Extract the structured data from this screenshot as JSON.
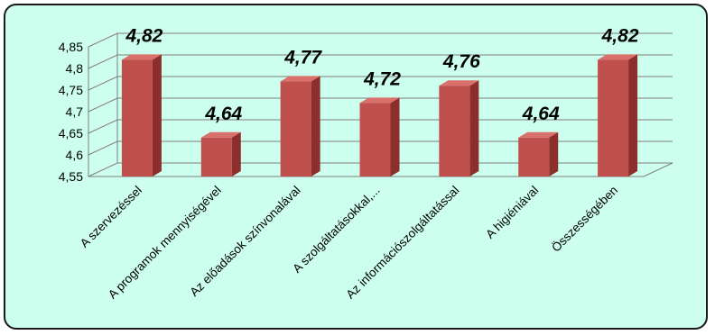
{
  "chart_data": {
    "type": "bar",
    "categories": [
      "A szervezéssel",
      "A programok mennyiségével",
      "Az előadások színvonalával",
      "A szolgáltatásokkal,...",
      "Az információszolgáltatással",
      "A higiéniával",
      "Összességében"
    ],
    "values": [
      4.82,
      4.64,
      4.77,
      4.72,
      4.76,
      4.64,
      4.82
    ],
    "data_labels": [
      "4,82",
      "4,64",
      "4,77",
      "4,72",
      "4,76",
      "4,64",
      "4,82"
    ],
    "yticks": [
      "4,55",
      "4,6",
      "4,65",
      "4,7",
      "4,75",
      "4,8",
      "4,85"
    ],
    "ylim": [
      4.55,
      4.85
    ],
    "grid": true,
    "three_d": true,
    "colors": {
      "bar_front": "#c0504d",
      "bar_side": "#8c2f2c",
      "bar_top": "#d9706c",
      "background": "#ccffee",
      "gridline": "#7f7f7f"
    }
  }
}
